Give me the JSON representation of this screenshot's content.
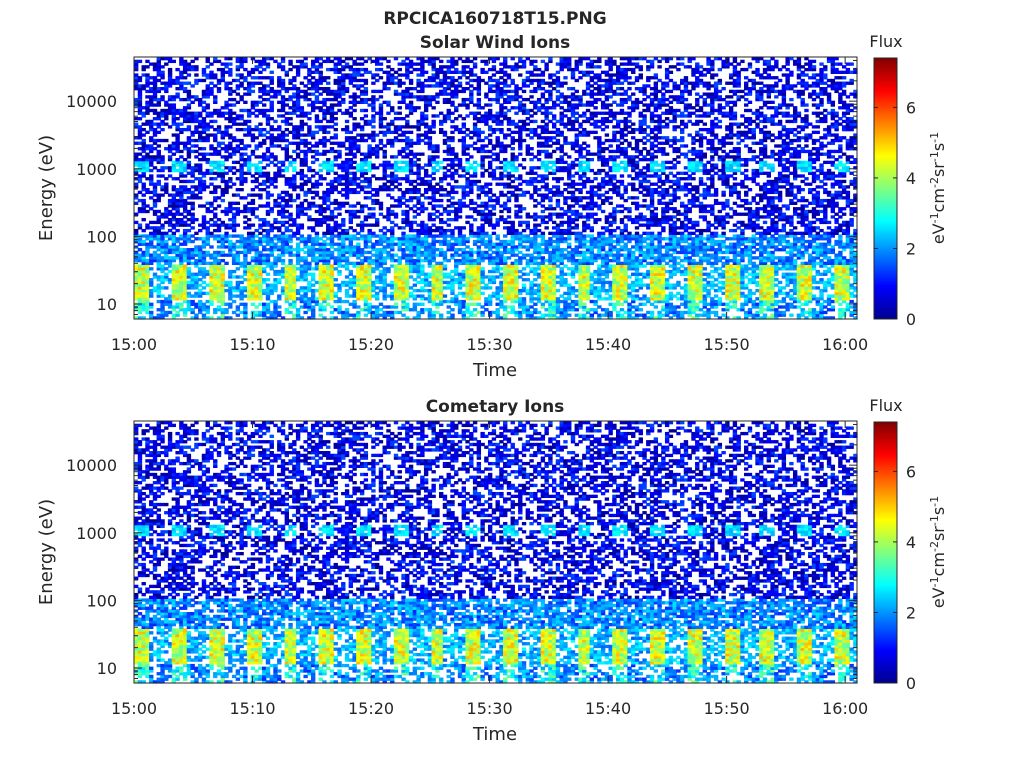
{
  "figure_title": "RPCICA160718T15.PNG",
  "colors": {
    "jet_stops": [
      "#00008f",
      "#0000ff",
      "#00ffff",
      "#ffff00",
      "#ff0000",
      "#800000"
    ],
    "axis": "#262626",
    "background": "#ffffff"
  },
  "chart_data": [
    {
      "type": "heatmap",
      "title": "Solar Wind Ions",
      "xlabel": "Time",
      "ylabel": "Energy (eV)",
      "y_scale": "log",
      "x_ticks": [
        "15:00",
        "15:10",
        "15:20",
        "15:30",
        "15:40",
        "15:50",
        "16:00"
      ],
      "x_range": [
        "15:00",
        "16:01"
      ],
      "y_ticks": [
        10,
        100,
        1000,
        10000
      ],
      "y_tick_labels": [
        "10",
        "100",
        "1000",
        "10000"
      ],
      "y_range": [
        6,
        45000
      ],
      "colorbar": {
        "title": "Flux",
        "label": "eV-1cm-2sr-1s-1",
        "label_base": [
          "eV",
          "cm",
          "sr",
          "s"
        ],
        "label_exp": [
          "-1",
          "-2",
          "-1",
          "-1"
        ],
        "range": [
          0,
          7.4
        ],
        "ticks": [
          "0",
          "2",
          "4",
          "6"
        ],
        "colormap": "jet"
      },
      "grid": false,
      "legend": "none"
    },
    {
      "type": "heatmap",
      "title": "Cometary Ions",
      "xlabel": "Time",
      "ylabel": "Energy (eV)",
      "y_scale": "log",
      "x_ticks": [
        "15:00",
        "15:10",
        "15:20",
        "15:30",
        "15:40",
        "15:50",
        "16:00"
      ],
      "x_range": [
        "15:00",
        "16:01"
      ],
      "y_ticks": [
        10,
        100,
        1000,
        10000
      ],
      "y_tick_labels": [
        "10",
        "100",
        "1000",
        "10000"
      ],
      "y_range": [
        6,
        45000
      ],
      "colorbar": {
        "title": "Flux",
        "label": "eV-1cm-2sr-1s-1",
        "label_base": [
          "eV",
          "cm",
          "sr",
          "s"
        ],
        "label_exp": [
          "-1",
          "-2",
          "-1",
          "-1"
        ],
        "range": [
          0,
          7.4
        ],
        "ticks": [
          "0",
          "2",
          "4",
          "6"
        ],
        "colormap": "jet"
      },
      "grid": false,
      "legend": "none"
    }
  ]
}
